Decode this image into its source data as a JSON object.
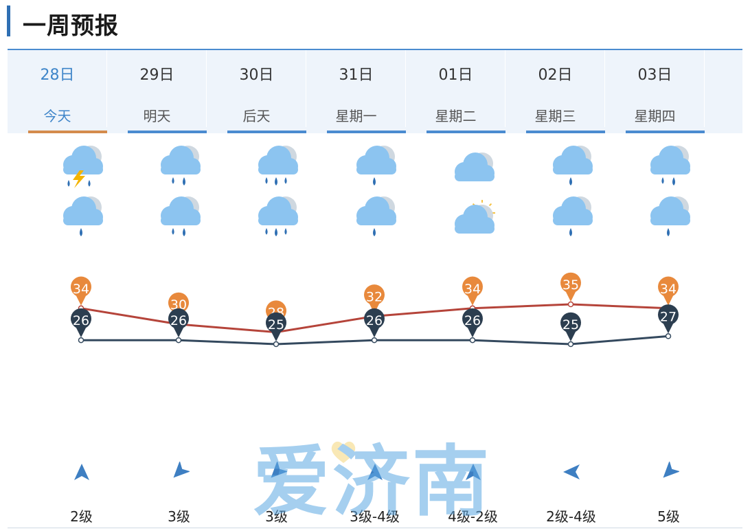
{
  "page": {
    "title": "一周预报"
  },
  "days": [
    {
      "date": "28日",
      "label": "今天",
      "today": true,
      "icon_day": "thunderstorm-icon",
      "icon_night": "light-rain-icon",
      "wind_dir": "south",
      "wind": "2级"
    },
    {
      "date": "29日",
      "label": "明天",
      "today": false,
      "icon_day": "moderate-rain-icon",
      "icon_night": "moderate-rain-icon",
      "wind_dir": "northeast",
      "wind": "3级"
    },
    {
      "date": "30日",
      "label": "后天",
      "today": false,
      "icon_day": "heavy-rain-icon",
      "icon_night": "heavy-rain-icon",
      "wind_dir": "northeast",
      "wind": "3级"
    },
    {
      "date": "31日",
      "label": "星期一",
      "today": false,
      "icon_day": "light-rain-icon",
      "icon_night": "light-rain-icon",
      "wind_dir": "south",
      "wind": "3级-4级"
    },
    {
      "date": "01日",
      "label": "星期二",
      "today": false,
      "icon_day": "cloudy-icon",
      "icon_night": "partly-cloudy-icon",
      "wind_dir": "south",
      "wind": "4级-2级"
    },
    {
      "date": "02日",
      "label": "星期三",
      "today": false,
      "icon_day": "light-rain-icon",
      "icon_night": "light-rain-icon",
      "wind_dir": "east",
      "wind": "2级-4级"
    },
    {
      "date": "03日",
      "label": "星期四",
      "today": false,
      "icon_day": "moderate-rain-icon",
      "icon_night": "light-rain-icon",
      "wind_dir": "northeast",
      "wind": "5级"
    }
  ],
  "chart_data": {
    "type": "line",
    "categories": [
      "28日",
      "29日",
      "30日",
      "31日",
      "01日",
      "02日",
      "03日"
    ],
    "series": [
      {
        "values": [
          34,
          30,
          28,
          32,
          34,
          35,
          34
        ],
        "color": "#b5443a",
        "marker_color": "#e8893c"
      },
      {
        "values": [
          26,
          26,
          25,
          26,
          26,
          25,
          27
        ],
        "color": "#34495e",
        "marker_color": "#2c3e50"
      }
    ]
  },
  "watermark": {
    "text": "爱济南"
  },
  "colors": {
    "accent": "#2f6fb3",
    "header_bg": "#eef4fb",
    "today_underline": "#d48b4c",
    "underline": "#4a8bd0",
    "icon_cloud": "#8cc4f0",
    "icon_rain": "#2f6fb3",
    "icon_bolt": "#f4b400",
    "icon_sun": "#f5c242"
  }
}
